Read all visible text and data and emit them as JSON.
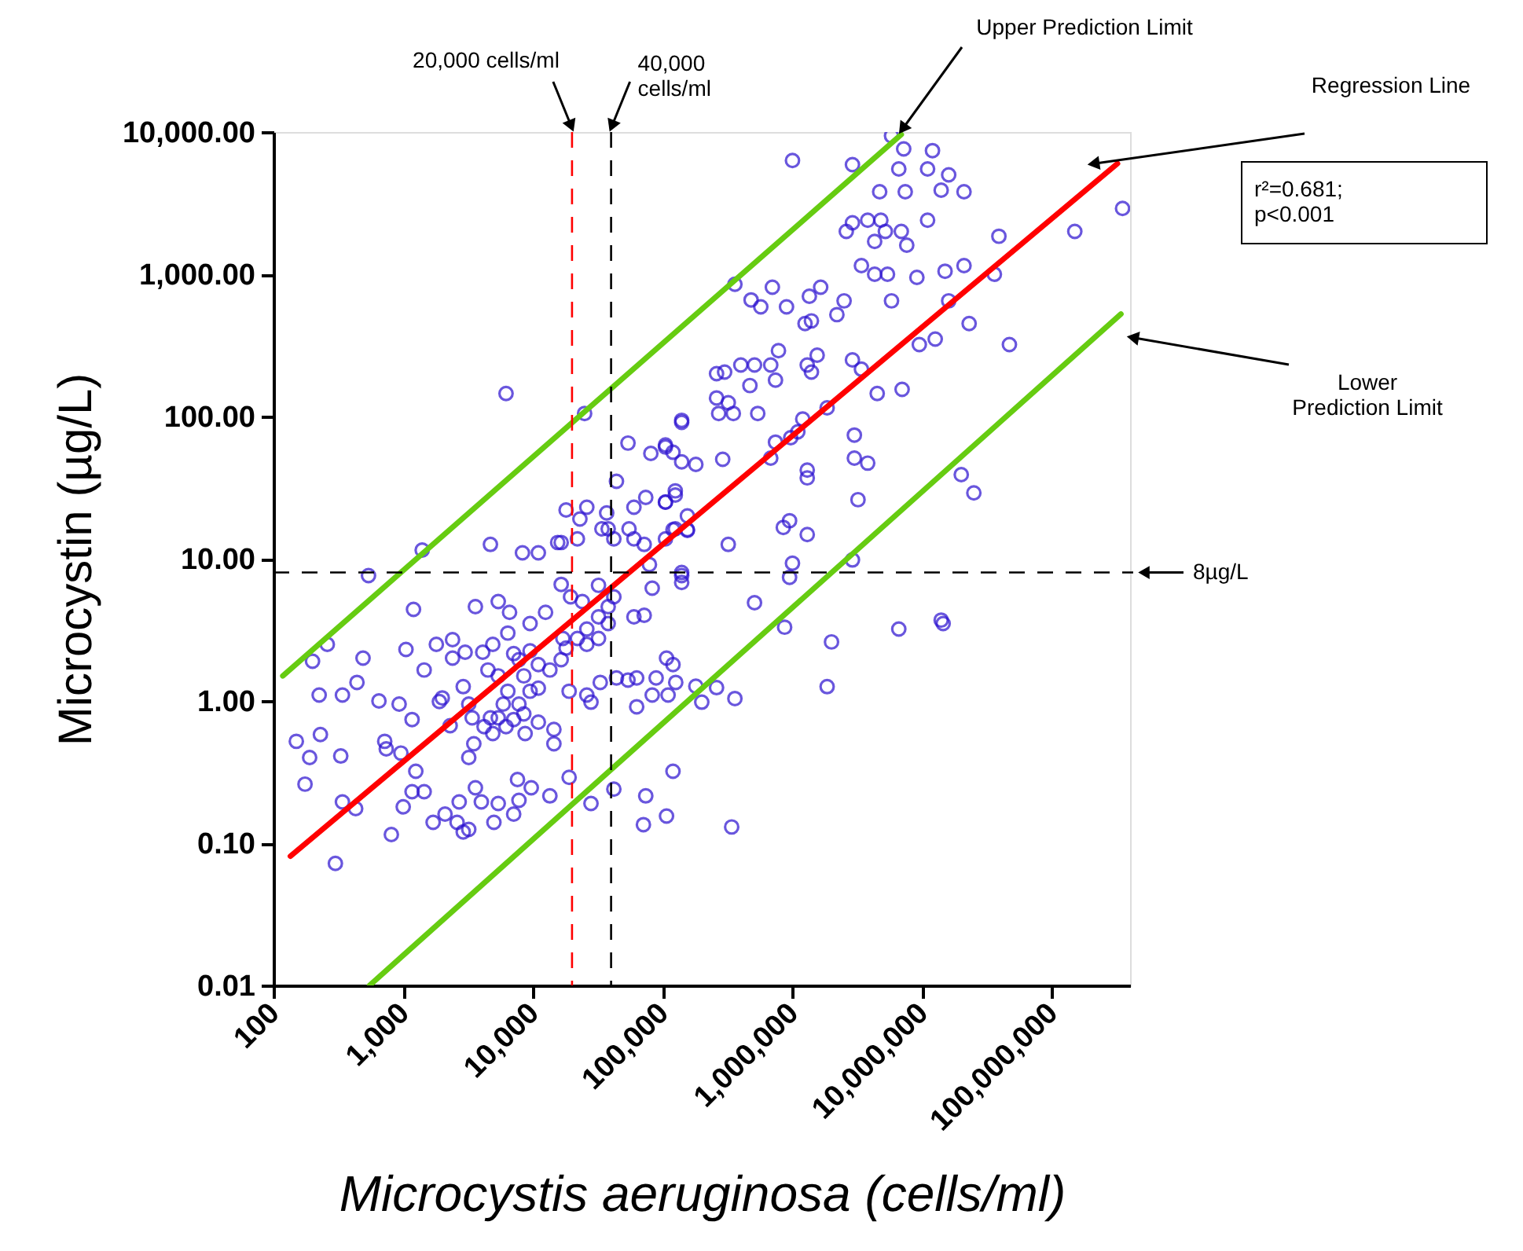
{
  "chart_data": {
    "type": "scatter",
    "xlabel": "Microcystis aeruginosa (cells/ml)",
    "ylabel": "Microcystin (µg/L)",
    "log": "xy",
    "grid": false,
    "xlim": [
      100,
      400000000
    ],
    "ylim": [
      0.01,
      10000
    ],
    "xticks": [
      100,
      {
        "value": 1000,
        "label": "1,000"
      },
      {
        "value": 10000,
        "label": "10,000"
      },
      {
        "value": 100000,
        "label": "100,000"
      },
      {
        "value": 1000000,
        "label": "1,000,000"
      },
      {
        "value": 10000000,
        "label": "10,000,000"
      },
      {
        "value": 100000000,
        "label": "100,000,000"
      }
    ],
    "yticks": [
      {
        "value": 0.01,
        "label": "0.01"
      },
      {
        "value": 0.1,
        "label": "0.10"
      },
      {
        "value": 1,
        "label": "1.00"
      },
      {
        "value": 10,
        "label": "10.00"
      },
      {
        "value": 100,
        "label": "100.00"
      },
      {
        "value": 1000,
        "label": "1,000.00"
      },
      {
        "value": 10000,
        "label": "10,000.00"
      }
    ],
    "series": [
      {
        "marker": "circle",
        "color": "#2a10d0",
        "x": [
          6200,
          25000,
          1000000,
          2900000,
          5800000,
          7200000,
          12000000,
          6600000,
          11000000,
          16000000,
          4700000,
          7400000,
          14000000,
          21000000,
          350000000,
          150000000,
          39000000,
          2600000,
          2900000,
          3800000,
          4800000,
          5200000,
          6900000,
          4300000,
          7600000,
          11000000,
          3400000,
          4300000,
          5400000,
          9100000,
          15000000,
          21000000,
          36000000,
          360000,
          480000,
          570000,
          700000,
          900000,
          1350000,
          1650000,
          1400000,
          1250000,
          2200000,
          2500000,
          5800000,
          16000000,
          23000000,
          9500000,
          12600000,
          47000000,
          260000,
          300000,
          400000,
          510000,
          680000,
          780000,
          740000,
          1300000,
          1550000,
          1400000,
          470000,
          2900000,
          3400000,
          4500000,
          7000000,
          260000,
          320000,
          270000,
          350000,
          540000,
          140000,
          105000,
          140000,
          180000,
          290000,
          680000,
          740000,
          970000,
          1200000,
          1100000,
          1850000,
          3000000,
          3000000,
          3800000,
          20000000,
          25000000,
          3200000,
          1300000,
          1300000,
          140000,
          54000,
          81000,
          105000,
          120000,
          44000,
          18000,
          23000,
          26000,
          37000,
          60000,
          74000,
          105000,
          125000,
          1400,
          540,
          4700,
          8300,
          11000,
          15500,
          1200,
          260,
          200,
          490,
          225,
          340,
          440,
          650,
          930,
          1170,
          1450,
          1050,
          1800,
          2400,
          2400,
          3000,
          3600,
          5400,
          6600,
          150,
          190,
          230,
          330,
          175,
          340,
          430,
          300,
          720,
          740,
          960,
          1250,
          1170,
          1450,
          1000,
          810,
          1700,
          2100,
          2600,
          2900,
          3200,
          2700,
          3600,
          4000,
          5400,
          7100,
          7800,
          7600,
          9700,
          13500,
          19000,
          5000,
          28000,
          42000,
          74000,
          71000,
          107000,
          120000,
          340000,
          320000,
          850000,
          950000,
          1300000,
          1000000,
          950000,
          140000,
          140000,
          2900000,
          510000,
          870000,
          2000000,
          6600000,
          14000000,
          14500000,
          1850000,
          107000,
          120000,
          126000,
          110000,
          180000,
          200000,
          260000,
          360000,
          19000,
          26000,
          28000,
          33000,
          44000,
          54000,
          63000,
          83000,
          89000,
          63000,
          1900,
          2000,
          2300,
          2900,
          3200,
          3400,
          3500,
          3200,
          4200,
          4700,
          4900,
          5400,
          5900,
          6200,
          7100,
          8500,
          8700,
          11000,
          14500,
          14500,
          9500,
          8500,
          7800,
          7100,
          9500,
          11000,
          13500,
          16500,
          18000,
          22000,
          26000,
          32000,
          38000,
          42000,
          32000,
          24000,
          19500,
          16500,
          12500,
          9500,
          6400,
          4900,
          4100,
          4500,
          5400,
          6400,
          7800,
          11000,
          17000,
          26000,
          32000,
          38000,
          60000,
          72000,
          83000,
          79000,
          140000,
          155000,
          60000,
          38000,
          22000,
          16500,
          34000,
          42000,
          55000,
          72000,
          105000,
          125000,
          105000,
          125000,
          155000,
          120000,
          155000
        ],
        "values": [
          145,
          105,
          6300,
          5900,
          9400,
          7600,
          7400,
          5500,
          5500,
          5000,
          3800,
          3800,
          3900,
          3800,
          2900,
          2000,
          1850,
          2000,
          2300,
          2400,
          2400,
          2000,
          2000,
          1700,
          1600,
          2400,
          1150,
          1000,
          1000,
          950,
          1050,
          1150,
          1000,
          850,
          660,
          590,
          810,
          590,
          700,
          810,
          470,
          450,
          520,
          650,
          650,
          650,
          450,
          320,
          350,
          320,
          200,
          205,
          230,
          230,
          230,
          290,
          180,
          230,
          270,
          205,
          165,
          250,
          215,
          145,
          155,
          135,
          125,
          105,
          105,
          105,
          94,
          61,
          48,
          46,
          50,
          51,
          66,
          71,
          96,
          78,
          115,
          74,
          51,
          47,
          39,
          29,
          26,
          42,
          37,
          91,
          65,
          55,
          63,
          56,
          35,
          22,
          19,
          23,
          21,
          23,
          27,
          25,
          30,
          11.5,
          7.6,
          12.6,
          11,
          11,
          13,
          4.4,
          2.5,
          1.9,
          2.0,
          1.1,
          1.1,
          1.35,
          1.0,
          0.95,
          0.74,
          1.65,
          2.3,
          2.5,
          2.7,
          2.0,
          2.2,
          4.6,
          5.0,
          4.2,
          0.52,
          0.4,
          0.58,
          0.41,
          0.26,
          0.195,
          0.175,
          0.072,
          0.52,
          0.46,
          0.43,
          0.32,
          0.23,
          0.23,
          0.18,
          0.115,
          0.14,
          0.16,
          0.14,
          0.12,
          0.125,
          0.195,
          0.245,
          0.195,
          0.19,
          0.16,
          0.2,
          0.28,
          0.245,
          0.215,
          0.29,
          0.14,
          0.19,
          0.24,
          0.215,
          0.135,
          0.155,
          0.32,
          0.13,
          12.6,
          16.6,
          18.5,
          14.8,
          9.3,
          7.4,
          8,
          6.8,
          9.8,
          4.9,
          3.3,
          2.6,
          3.2,
          3.7,
          3.5,
          1.26,
          2.0,
          1.8,
          1.35,
          1.1,
          1.27,
          0.98,
          1.24,
          1.04,
          1.17,
          1.1,
          0.98,
          1.35,
          1.45,
          1.4,
          1.45,
          1.1,
          1.45,
          0.91,
          0.99,
          1.05,
          0.67,
          1.26,
          0.95,
          0.76,
          0.5,
          0.4,
          0.66,
          0.76,
          0.59,
          0.76,
          0.95,
          0.66,
          0.74,
          0.81,
          0.59,
          0.71,
          0.63,
          0.5,
          1.17,
          1.5,
          1.95,
          2.15,
          2.25,
          1.8,
          1.65,
          1.95,
          2.35,
          2.75,
          3.2,
          3.9,
          4.6,
          5.4,
          6.5,
          5.0,
          5.4,
          6.6,
          4.2,
          3.5,
          3.0,
          2.5,
          2.2,
          1.65,
          1.5,
          1.17,
          0.95,
          1.23,
          2.75,
          2.5,
          2.75,
          3.5,
          3.9,
          4.0,
          6.2,
          9.1,
          7.6,
          15.8,
          13.8,
          16.2,
          13.8,
          13,
          16.2,
          13.8,
          16.2,
          12.6,
          13.8,
          16.2,
          25,
          28,
          20,
          16,
          16
        ]
      },
      {
        "type": "line",
        "name": "Upper Prediction Limit",
        "color": "#66cc11",
        "x": [
          118,
          6900000
        ],
        "values": [
          1.5,
          9600
        ]
      },
      {
        "type": "line",
        "name": "Regression Line",
        "color": "#ff0000",
        "x": [
          135,
          320000000
        ],
        "values": [
          0.081,
          6000
        ]
      },
      {
        "type": "line",
        "name": "Lower\nPrediction Limit",
        "color": "#66cc11",
        "x": [
          550,
          340000000
        ],
        "values": [
          0.01,
          525
        ]
      }
    ],
    "line_style": "solid",
    "ref_lines": [
      {
        "axis": "x",
        "value": 20000,
        "label": "20,000 cells/ml",
        "color": "#ff0000",
        "line_style": "dashed"
      },
      {
        "axis": "x",
        "value": 40000,
        "label": "40,000\ncells/ml",
        "color": "#000000",
        "line_style": "dashed"
      },
      {
        "axis": "y",
        "value": 8,
        "label": "8µg/L",
        "color": "#000000",
        "line_style": "dashed"
      }
    ],
    "annotations": [
      "r²=0.681;\np<0.001"
    ]
  }
}
